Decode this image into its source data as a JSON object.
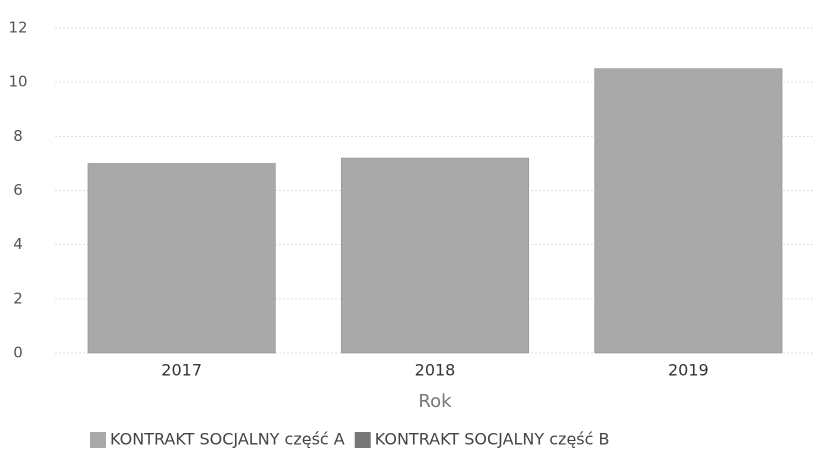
{
  "chart_data": {
    "type": "bar",
    "categories": [
      "2017",
      "2018",
      "2019"
    ],
    "series": [
      {
        "name": "KONTRAKT SOCJALNY część A",
        "color": "#a9a9a9",
        "values": [
          7,
          7.2,
          10.5
        ]
      },
      {
        "name": "KONTRAKT SOCJALNY część B",
        "color": "#777777",
        "values": [
          null,
          null,
          null
        ]
      }
    ],
    "x_label": "Rok",
    "ylim": [
      0,
      12
    ],
    "yticks": [
      0,
      2,
      4,
      6,
      8,
      10,
      12
    ],
    "grid": true,
    "legend": "bottom"
  }
}
